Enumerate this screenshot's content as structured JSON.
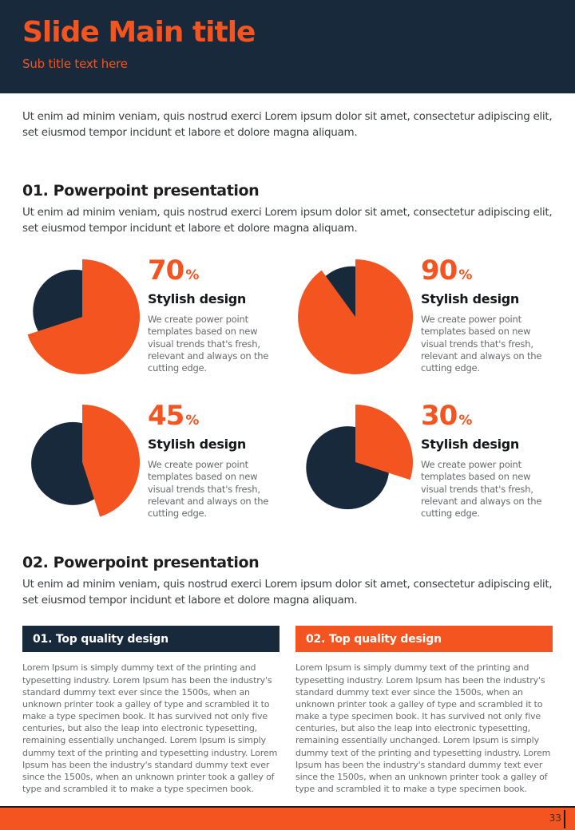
{
  "colors": {
    "navy": "#17293A",
    "orange": "#F4541F",
    "heading_text": "#1E1E1E",
    "body_text": "#3C4043",
    "muted_text": "#66696D",
    "bar_text": "#FFFFFF"
  },
  "header": {
    "title": "Slide Main title",
    "subtitle": "Sub title text here"
  },
  "intro": "Ut enim ad minim veniam, quis nostrud exerci  Lorem ipsum dolor sit amet, consectetur adipiscing elit, set eiusmod tempor incidunt et labore et dolore magna aliquam.",
  "sections": [
    {
      "heading": "01. Powerpoint presentation",
      "body": "Ut enim ad minim veniam, quis nostrud exerci  Lorem ipsum dolor sit amet, consectetur adipiscing elit, set eiusmod tempor incidunt et labore et dolore magna aliquam."
    },
    {
      "heading": "02. Powerpoint presentation",
      "body": "Ut enim ad minim veniam, quis nostrud exerci  Lorem ipsum dolor sit amet, consectetur adipiscing elit, set eiusmod tempor incidunt et labore et dolore magna aliquam."
    }
  ],
  "stats": [
    {
      "value": "70",
      "unit": "%",
      "title": "Stylish design",
      "description": "We create power point templates based on new visual trends that's fresh, relevant and always on the cutting edge."
    },
    {
      "value": "90",
      "unit": "%",
      "title": "Stylish design",
      "description": "We create power point templates based on new visual trends that's fresh, relevant and always on the cutting edge."
    },
    {
      "value": "45",
      "unit": "%",
      "title": "Stylish design",
      "description": "We create power point templates based on new visual trends that's fresh, relevant and always on the cutting edge."
    },
    {
      "value": "30",
      "unit": "%",
      "title": "Stylish design",
      "description": "We create power point templates based on new visual trends that's fresh, relevant and always on the cutting edge."
    }
  ],
  "chart_data": [
    {
      "type": "pie",
      "title": "Stylish design 70%",
      "slices": [
        {
          "label": "value",
          "value": 70,
          "color": "#F4541F"
        },
        {
          "label": "remainder",
          "value": 30,
          "color": "#17293A"
        }
      ],
      "legend": "none",
      "style": "exploded value slice, larger radius than remainder"
    },
    {
      "type": "pie",
      "title": "Stylish design 90%",
      "slices": [
        {
          "label": "value",
          "value": 90,
          "color": "#F4541F"
        },
        {
          "label": "remainder",
          "value": 10,
          "color": "#17293A"
        }
      ],
      "legend": "none",
      "style": "exploded value slice, larger radius than remainder"
    },
    {
      "type": "pie",
      "title": "Stylish design 45%",
      "slices": [
        {
          "label": "value",
          "value": 45,
          "color": "#F4541F"
        },
        {
          "label": "remainder",
          "value": 55,
          "color": "#17293A"
        }
      ],
      "legend": "none",
      "style": "exploded value slice, larger radius than remainder"
    },
    {
      "type": "pie",
      "title": "Stylish design 30%",
      "slices": [
        {
          "label": "value",
          "value": 30,
          "color": "#F4541F"
        },
        {
          "label": "remainder",
          "value": 70,
          "color": "#17293A"
        }
      ],
      "legend": "none",
      "style": "exploded value slice, larger radius than remainder"
    }
  ],
  "columns": [
    {
      "header": "01. Top quality design",
      "accent": "navy",
      "body": "Lorem Ipsum is simply dummy text of the printing and typesetting industry. Lorem Ipsum has been the industry's standard dummy text ever since the 1500s, when an unknown printer took a galley of type and scrambled it to make a type specimen book. It has survived not only five centuries, but also the leap into electronic typesetting, remaining essentially unchanged. Lorem Ipsum is simply dummy text of the printing and typesetting industry. Lorem Ipsum has been the industry's standard dummy text ever since the 1500s, when an unknown printer took a galley of type and scrambled it to make a type specimen book."
    },
    {
      "header": "02. Top quality design",
      "accent": "orange",
      "body": "Lorem Ipsum is simply dummy text of the printing and typesetting industry. Lorem Ipsum has been the industry's standard dummy text ever since the 1500s, when an unknown printer took a galley of type and scrambled it to make a type specimen book. It has survived not only five centuries, but also the leap into electronic typesetting, remaining essentially unchanged. Lorem Ipsum is simply dummy text of the printing and typesetting industry. Lorem Ipsum has been the industry's standard dummy text ever since the 1500s, when an unknown printer took a galley of type and scrambled it to make a type specimen book."
    }
  ],
  "footer": {
    "page_number": "33"
  }
}
